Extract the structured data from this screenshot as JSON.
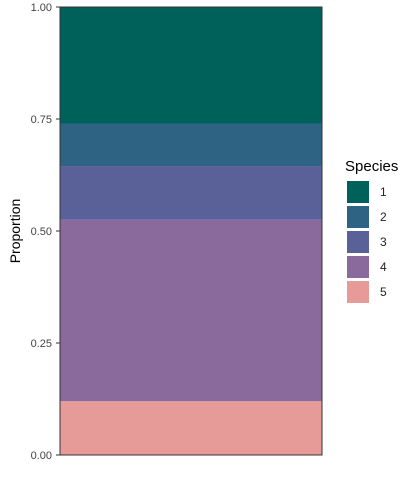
{
  "chart_data": {
    "type": "bar",
    "stacked": true,
    "categories": [
      ""
    ],
    "series": [
      {
        "name": "1",
        "values": [
          0.26
        ],
        "color": "#00605A"
      },
      {
        "name": "2",
        "values": [
          0.095
        ],
        "color": "#2E6384"
      },
      {
        "name": "3",
        "values": [
          0.12
        ],
        "color": "#5A6199"
      },
      {
        "name": "4",
        "values": [
          0.405
        ],
        "color": "#8A6A9D"
      },
      {
        "name": "5",
        "values": [
          0.12
        ],
        "color": "#E79B99"
      }
    ],
    "stack_order_bottom_to_top": [
      "5",
      "4",
      "3",
      "2",
      "1"
    ],
    "xlabel": "",
    "ylabel": "Proportion",
    "ylim": [
      0,
      1
    ],
    "yticks": [
      "0.00",
      "0.25",
      "0.50",
      "0.75",
      "1.00"
    ],
    "legend": {
      "title": "Species",
      "position": "right"
    },
    "grid": false
  }
}
